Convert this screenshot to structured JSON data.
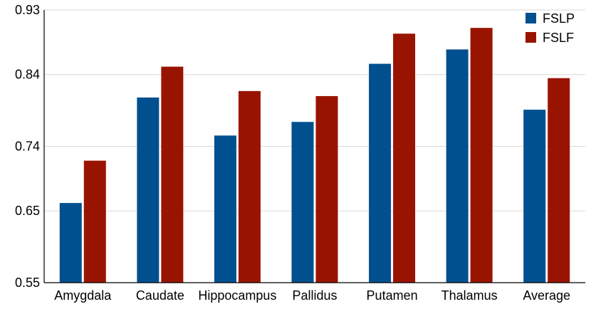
{
  "chart_data": {
    "type": "bar",
    "title": "",
    "xlabel": "",
    "ylabel": "",
    "categories": [
      "Amygdala",
      "Caudate",
      "Hippocampus",
      "Pallidus",
      "Putamen",
      "Thalamus",
      "Average"
    ],
    "series": [
      {
        "name": "FSLP",
        "color": "#00508f",
        "values": [
          0.661,
          0.808,
          0.755,
          0.774,
          0.855,
          0.875,
          0.791
        ]
      },
      {
        "name": "FSLF",
        "color": "#991400",
        "values": [
          0.72,
          0.851,
          0.817,
          0.81,
          0.897,
          0.905,
          0.835
        ]
      }
    ],
    "ylim": [
      0.55,
      0.93
    ],
    "yticks": [
      0.55,
      0.65,
      0.74,
      0.84,
      0.93
    ],
    "ytick_labels": [
      "0.55",
      "0.65",
      "0.74",
      "0.84",
      "0.93"
    ],
    "grid": true,
    "legend_position": "top-right"
  }
}
